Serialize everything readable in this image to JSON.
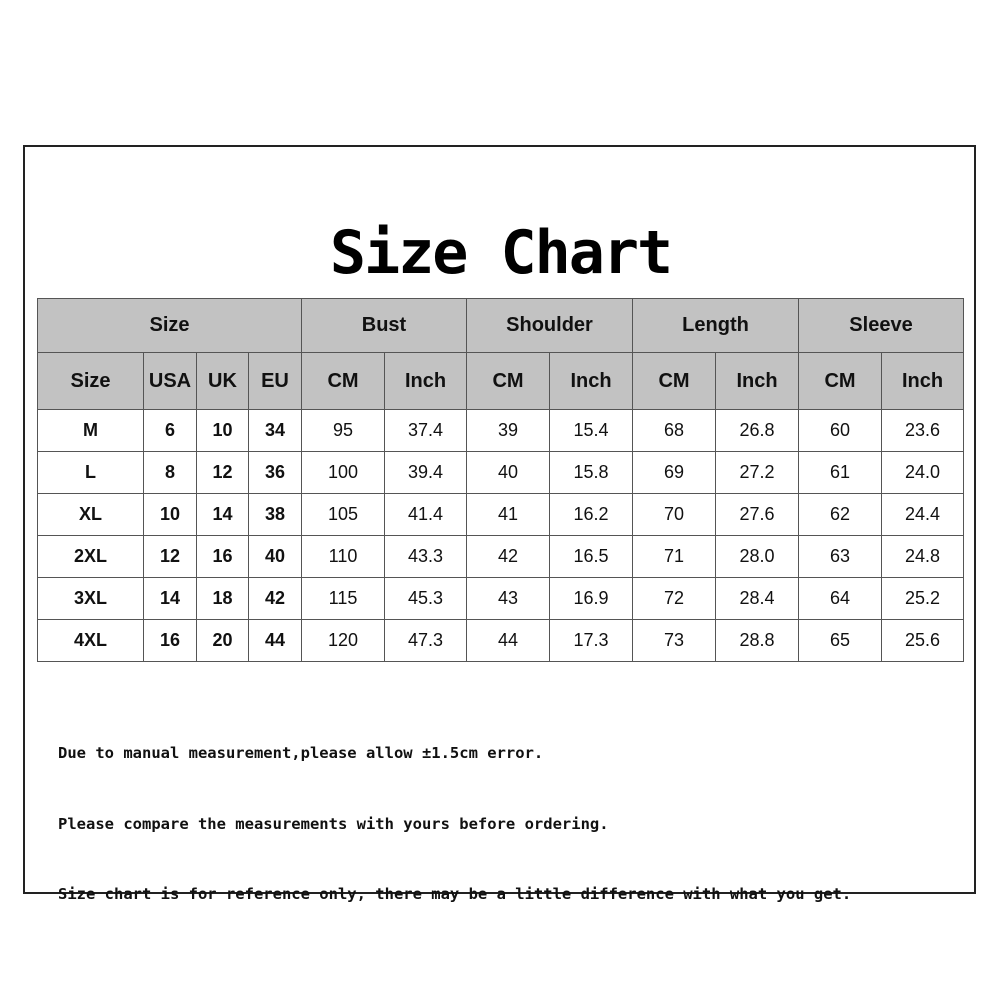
{
  "title": "Size Chart",
  "groups": [
    "Size",
    "Bust",
    "Shoulder",
    "Length",
    "Sleeve"
  ],
  "subheaders": [
    "Size",
    "USA",
    "UK",
    "EU",
    "CM",
    "Inch",
    "CM",
    "Inch",
    "CM",
    "Inch",
    "CM",
    "Inch"
  ],
  "rows": [
    [
      "M",
      "6",
      "10",
      "34",
      "95",
      "37.4",
      "39",
      "15.4",
      "68",
      "26.8",
      "60",
      "23.6"
    ],
    [
      "L",
      "8",
      "12",
      "36",
      "100",
      "39.4",
      "40",
      "15.8",
      "69",
      "27.2",
      "61",
      "24.0"
    ],
    [
      "XL",
      "10",
      "14",
      "38",
      "105",
      "41.4",
      "41",
      "16.2",
      "70",
      "27.6",
      "62",
      "24.4"
    ],
    [
      "2XL",
      "12",
      "16",
      "40",
      "110",
      "43.3",
      "42",
      "16.5",
      "71",
      "28.0",
      "63",
      "24.8"
    ],
    [
      "3XL",
      "14",
      "18",
      "42",
      "115",
      "45.3",
      "43",
      "16.9",
      "72",
      "28.4",
      "64",
      "25.2"
    ],
    [
      "4XL",
      "16",
      "20",
      "44",
      "120",
      "47.3",
      "44",
      "17.3",
      "73",
      "28.8",
      "65",
      "25.6"
    ]
  ],
  "notes": [
    "Due to manual measurement,please allow ±1.5cm error.",
    "Please compare the measurements with yours before ordering.",
    "Size chart is for reference only, there may be a little difference with what you get."
  ],
  "colors": {
    "header_fill": "#c2c2c2",
    "border": "#555555"
  }
}
